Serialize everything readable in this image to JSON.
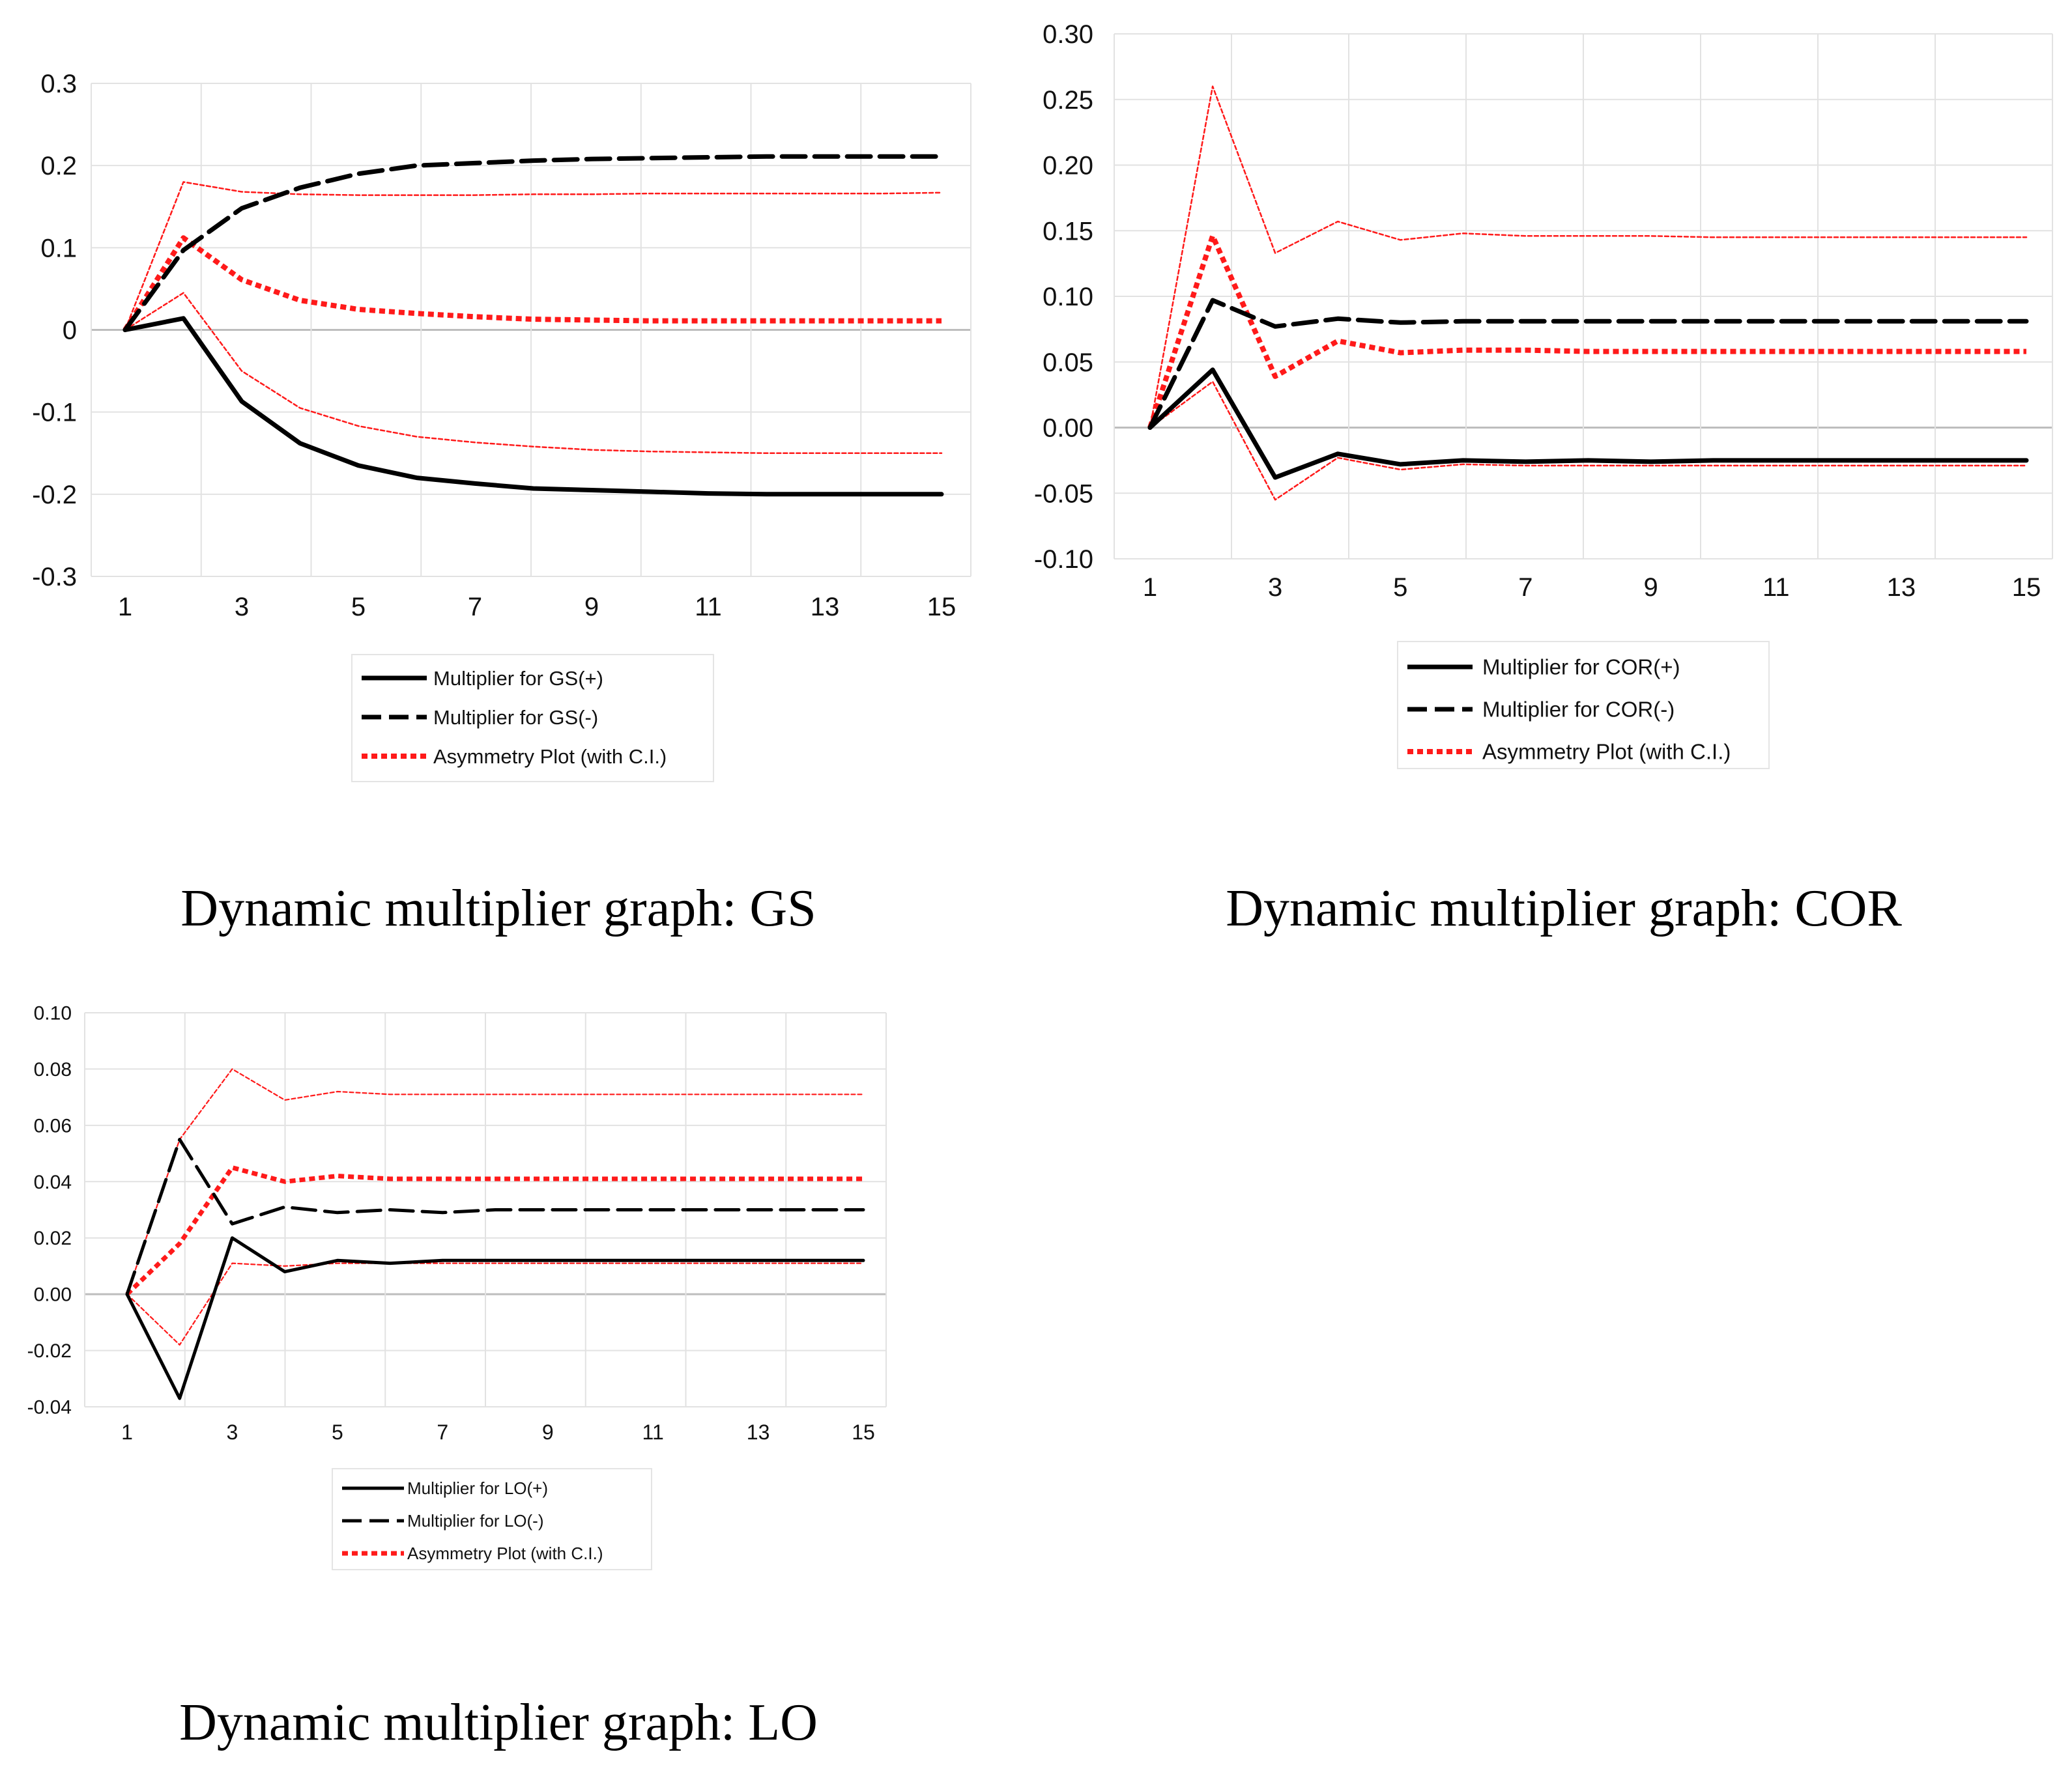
{
  "colors": {
    "black": "#000000",
    "red": "#ff1a1a"
  },
  "captions": {
    "gs": "Dynamic multiplier graph: GS",
    "cor": "Dynamic multiplier graph: COR",
    "lo": "Dynamic multiplier graph: LO"
  },
  "chart_data": [
    {
      "id": "gs",
      "type": "line",
      "x": [
        1,
        2,
        3,
        4,
        5,
        6,
        7,
        8,
        9,
        10,
        11,
        12,
        13,
        14,
        15
      ],
      "ylim": [
        -0.3,
        0.3
      ],
      "yticks": [
        -0.3,
        -0.2,
        -0.1,
        0,
        0.1,
        0.2,
        0.3
      ],
      "ytick_labels": [
        "-0.3",
        "-0.2",
        "-0.1",
        "0",
        "0.1",
        "0.2",
        "0.3"
      ],
      "xtick_labels": [
        "1",
        "3",
        "5",
        "7",
        "9",
        "11",
        "13",
        "15"
      ],
      "series": [
        {
          "name": "Multiplier for GS(+)",
          "style": "solid",
          "values": [
            0,
            0.014,
            -0.087,
            -0.138,
            -0.165,
            -0.18,
            -0.187,
            -0.193,
            -0.195,
            -0.197,
            -0.199,
            -0.2,
            -0.2,
            -0.2,
            -0.2
          ]
        },
        {
          "name": "Multiplier for GS(-)",
          "style": "dashed",
          "values": [
            0,
            0.097,
            0.148,
            0.173,
            0.19,
            0.2,
            0.203,
            0.206,
            0.208,
            0.209,
            0.21,
            0.211,
            0.211,
            0.211,
            0.211
          ]
        },
        {
          "name": "Asymmetry Plot (with C.I.)",
          "style": "dotted",
          "values": [
            0,
            0.112,
            0.061,
            0.036,
            0.025,
            0.02,
            0.016,
            0.013,
            0.012,
            0.011,
            0.011,
            0.011,
            0.011,
            0.011,
            0.011
          ]
        },
        {
          "name": "Upper C.I.",
          "style": "thin",
          "values": [
            0,
            0.18,
            0.168,
            0.165,
            0.164,
            0.164,
            0.164,
            0.165,
            0.165,
            0.166,
            0.166,
            0.166,
            0.166,
            0.166,
            0.167
          ]
        },
        {
          "name": "Lower C.I.",
          "style": "thin",
          "values": [
            0,
            0.045,
            -0.05,
            -0.095,
            -0.117,
            -0.13,
            -0.137,
            -0.142,
            -0.146,
            -0.148,
            -0.149,
            -0.15,
            -0.15,
            -0.15,
            -0.15
          ]
        }
      ],
      "legend": [
        "Multiplier for GS(+)",
        "Multiplier for GS(-)",
        "Asymmetry Plot (with C.I.)"
      ]
    },
    {
      "id": "cor",
      "type": "line",
      "x": [
        1,
        2,
        3,
        4,
        5,
        6,
        7,
        8,
        9,
        10,
        11,
        12,
        13,
        14,
        15
      ],
      "ylim": [
        -0.1,
        0.3
      ],
      "yticks": [
        -0.1,
        -0.05,
        0.0,
        0.05,
        0.1,
        0.15,
        0.2,
        0.25,
        0.3
      ],
      "ytick_labels": [
        "-0.10",
        "-0.05",
        "0.00",
        "0.05",
        "0.10",
        "0.15",
        "0.20",
        "0.25",
        "0.30"
      ],
      "xtick_labels": [
        "1",
        "3",
        "5",
        "7",
        "9",
        "11",
        "13",
        "15"
      ],
      "series": [
        {
          "name": "Multiplier for COR(+)",
          "style": "solid",
          "values": [
            0,
            0.044,
            -0.038,
            -0.02,
            -0.028,
            -0.025,
            -0.026,
            -0.025,
            -0.026,
            -0.025,
            -0.025,
            -0.025,
            -0.025,
            -0.025,
            -0.025
          ]
        },
        {
          "name": "Multiplier for COR(-)",
          "style": "dashed",
          "values": [
            0,
            0.097,
            0.077,
            0.083,
            0.08,
            0.081,
            0.081,
            0.081,
            0.081,
            0.081,
            0.081,
            0.081,
            0.081,
            0.081,
            0.081
          ]
        },
        {
          "name": "Asymmetry Plot (with C.I.)",
          "style": "dotted",
          "values": [
            0,
            0.146,
            0.039,
            0.066,
            0.057,
            0.059,
            0.059,
            0.058,
            0.058,
            0.058,
            0.058,
            0.058,
            0.058,
            0.058,
            0.058
          ]
        },
        {
          "name": "Upper C.I.",
          "style": "thin",
          "values": [
            0,
            0.26,
            0.133,
            0.157,
            0.143,
            0.148,
            0.146,
            0.146,
            0.146,
            0.145,
            0.145,
            0.145,
            0.145,
            0.145,
            0.145
          ]
        },
        {
          "name": "Lower C.I.",
          "style": "thin",
          "values": [
            0,
            0.035,
            -0.055,
            -0.023,
            -0.032,
            -0.028,
            -0.029,
            -0.029,
            -0.029,
            -0.029,
            -0.029,
            -0.029,
            -0.029,
            -0.029,
            -0.029
          ]
        }
      ],
      "legend": [
        "Multiplier for COR(+)",
        "Multiplier for COR(-)",
        "Asymmetry Plot (with C.I.)"
      ]
    },
    {
      "id": "lo",
      "type": "line",
      "x": [
        1,
        2,
        3,
        4,
        5,
        6,
        7,
        8,
        9,
        10,
        11,
        12,
        13,
        14,
        15
      ],
      "ylim": [
        -0.04,
        0.1
      ],
      "yticks": [
        -0.04,
        -0.02,
        0.0,
        0.02,
        0.04,
        0.06,
        0.08,
        0.1
      ],
      "ytick_labels": [
        "-0.04",
        "-0.02",
        "0.00",
        "0.02",
        "0.04",
        "0.06",
        "0.08",
        "0.10"
      ],
      "xtick_labels": [
        "1",
        "3",
        "5",
        "7",
        "9",
        "11",
        "13",
        "15"
      ],
      "series": [
        {
          "name": "Multiplier for LO(+)",
          "style": "solid",
          "values": [
            0,
            -0.037,
            0.02,
            0.008,
            0.012,
            0.011,
            0.012,
            0.012,
            0.012,
            0.012,
            0.012,
            0.012,
            0.012,
            0.012,
            0.012
          ]
        },
        {
          "name": "Multiplier for LO(-)",
          "style": "dashed",
          "values": [
            0,
            0.055,
            0.025,
            0.031,
            0.029,
            0.03,
            0.029,
            0.03,
            0.03,
            0.03,
            0.03,
            0.03,
            0.03,
            0.03,
            0.03
          ]
        },
        {
          "name": "Asymmetry Plot (with C.I.)",
          "style": "dotted",
          "values": [
            0,
            0.018,
            0.045,
            0.04,
            0.042,
            0.041,
            0.041,
            0.041,
            0.041,
            0.041,
            0.041,
            0.041,
            0.041,
            0.041,
            0.041
          ]
        },
        {
          "name": "Upper C.I.",
          "style": "thin",
          "values": [
            0,
            0.055,
            0.08,
            0.069,
            0.072,
            0.071,
            0.071,
            0.071,
            0.071,
            0.071,
            0.071,
            0.071,
            0.071,
            0.071,
            0.071
          ]
        },
        {
          "name": "Lower C.I.",
          "style": "thin",
          "values": [
            0,
            -0.018,
            0.011,
            0.01,
            0.011,
            0.011,
            0.011,
            0.011,
            0.011,
            0.011,
            0.011,
            0.011,
            0.011,
            0.011,
            0.011
          ]
        }
      ],
      "legend": [
        "Multiplier for LO(+)",
        "Multiplier for LO(-)",
        "Asymmetry Plot (with C.I.)"
      ]
    }
  ]
}
